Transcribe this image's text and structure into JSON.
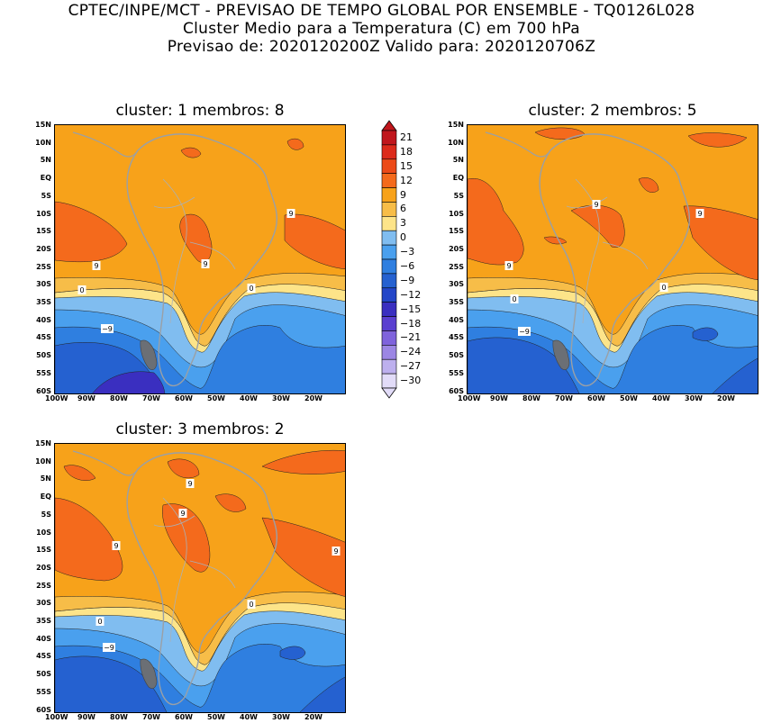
{
  "header": {
    "line1": "CPTEC/INPE/MCT - PREVISAO DE TEMPO GLOBAL POR ENSEMBLE - TQ0126L028",
    "line2": "Cluster Medio para a Temperatura (C) em 700 hPa",
    "line3": "Previsao de: 2020120200Z   Valido para: 2020120706Z"
  },
  "panels": [
    {
      "title": "cluster: 1   membros: 8",
      "contour_labels": [
        "9",
        "9",
        "9",
        "0",
        "0",
        "-9"
      ]
    },
    {
      "title": "cluster: 2   membros: 5",
      "contour_labels": [
        "9",
        "9",
        "9",
        "0",
        "0",
        "-9"
      ]
    },
    {
      "title": "cluster: 3   membros: 2",
      "contour_labels": [
        "9",
        "9",
        "9",
        "9",
        "0",
        "0",
        "-9"
      ]
    }
  ],
  "axes": {
    "lat_labels": [
      "15N",
      "10N",
      "5N",
      "EQ",
      "5S",
      "10S",
      "15S",
      "20S",
      "25S",
      "30S",
      "35S",
      "40S",
      "45S",
      "50S",
      "55S",
      "60S"
    ],
    "lon_labels": [
      "100W",
      "90W",
      "80W",
      "70W",
      "60W",
      "50W",
      "40W",
      "30W",
      "20W"
    ]
  },
  "colorbar": {
    "labels": [
      "21",
      "18",
      "15",
      "12",
      "9",
      "6",
      "3",
      "0",
      "-3",
      "-6",
      "-9",
      "-12",
      "-15",
      "-18",
      "-21",
      "-24",
      "-27",
      "-30"
    ],
    "colors": [
      "#c0161c",
      "#dc2a1a",
      "#ec4a18",
      "#f46a1c",
      "#f7a21a",
      "#f7bd48",
      "#fde489",
      "#80bdf0",
      "#4aa0ee",
      "#2f7fe0",
      "#2561d0",
      "#2346c8",
      "#3a2fc0",
      "#5a3fd0",
      "#7f63dc",
      "#9c86e4",
      "#bdb0ee",
      "#e2dcf8"
    ]
  }
}
